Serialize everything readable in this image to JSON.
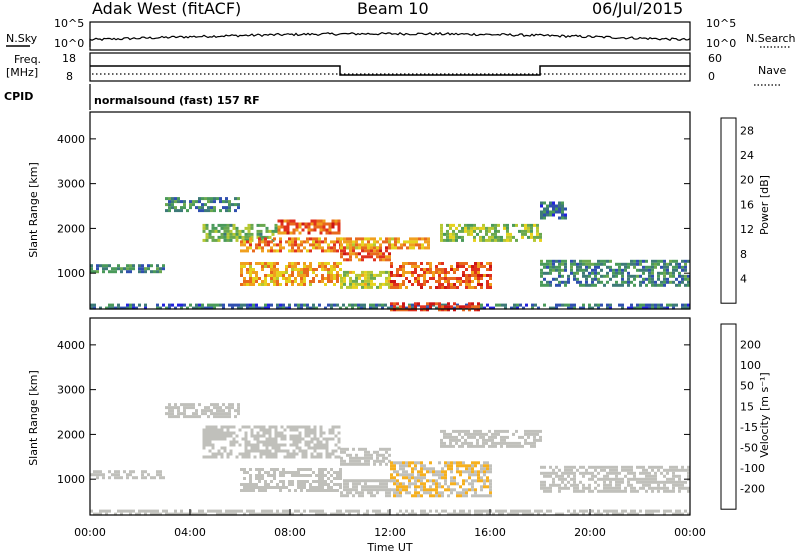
{
  "header": {
    "title": "Adak West (fitACF)",
    "beam": "Beam 10",
    "date": "06/Jul/2015"
  },
  "panels": {
    "nsky": {
      "label": "N.Sky",
      "right_label": "N.Search",
      "left_ticks": [
        "10^5",
        "10^0"
      ],
      "right_ticks": [
        "10^5",
        "10^0"
      ]
    },
    "freq": {
      "label_line1": "Freq.",
      "label_line2": "[MHz]",
      "left_ticks": [
        "18",
        "8"
      ],
      "right_label": "Nave",
      "right_ticks": [
        "60",
        "0"
      ]
    },
    "cpid": {
      "label": "CPID",
      "text": "normalsound (fast) 157 RF"
    }
  },
  "colors": {
    "power_scale": [
      "#2222dd",
      "#2f4faf",
      "#3d7a78",
      "#4a9a5a",
      "#6aa84f",
      "#b5c832",
      "#e6d21e",
      "#f0a01e",
      "#e86a1e",
      "#e0301e",
      "#cc1414"
    ],
    "velocity_scale": [
      "#e21f1f",
      "#f05a1e",
      "#f4901e",
      "#f6b01e",
      "#c0c0bb",
      "#c0c0bb",
      "#7fc84a",
      "#4c9a4c",
      "#2f6f8f",
      "#2b3faa"
    ]
  },
  "chart_data": [
    {
      "type": "heatmap",
      "name": "power",
      "xlabel": "",
      "ylabel": "Slant Range [km]",
      "yticks": [
        "1000",
        "2000",
        "3000",
        "4000"
      ],
      "ylim": [
        200,
        4600
      ],
      "xlim": [
        0,
        24
      ],
      "colorbar": {
        "label": "Power [dB]",
        "ticks": [
          "4",
          "8",
          "12",
          "16",
          "20",
          "24",
          "28"
        ],
        "range": [
          0,
          30
        ]
      },
      "features": [
        {
          "t0": 0.0,
          "t1": 24.0,
          "r0": 200,
          "r1": 320,
          "level": 6
        },
        {
          "t0": 0.0,
          "t1": 3.0,
          "r0": 1050,
          "r1": 1200,
          "level": 8
        },
        {
          "t0": 3.0,
          "t1": 6.0,
          "r0": 2400,
          "r1": 2700,
          "level": 8
        },
        {
          "t0": 4.5,
          "t1": 7.5,
          "r0": 1700,
          "r1": 2100,
          "level": 12
        },
        {
          "t0": 6.0,
          "t1": 10.0,
          "r0": 1500,
          "r1": 1800,
          "level": 22
        },
        {
          "t0": 6.0,
          "t1": 10.0,
          "r0": 750,
          "r1": 1250,
          "level": 20
        },
        {
          "t0": 7.5,
          "t1": 10.0,
          "r0": 1900,
          "r1": 2200,
          "level": 24
        },
        {
          "t0": 10.0,
          "t1": 12.0,
          "r0": 1300,
          "r1": 1600,
          "level": 24
        },
        {
          "t0": 10.0,
          "t1": 13.5,
          "r0": 1550,
          "r1": 1800,
          "level": 20
        },
        {
          "t0": 10.0,
          "t1": 12.0,
          "r0": 700,
          "r1": 1050,
          "level": 16
        },
        {
          "t0": 12.0,
          "t1": 16.0,
          "r0": 700,
          "r1": 1250,
          "level": 24
        },
        {
          "t0": 12.0,
          "t1": 15.5,
          "r0": 200,
          "r1": 350,
          "level": 26
        },
        {
          "t0": 14.0,
          "t1": 18.0,
          "r0": 1750,
          "r1": 2100,
          "level": 14
        },
        {
          "t0": 18.0,
          "t1": 24.0,
          "r0": 700,
          "r1": 1300,
          "level": 8
        },
        {
          "t0": 18.0,
          "t1": 19.0,
          "r0": 2200,
          "r1": 2600,
          "level": 6
        }
      ]
    },
    {
      "type": "heatmap",
      "name": "velocity",
      "xlabel": "Time UT",
      "ylabel": "Slant Range [km]",
      "yticks": [
        "1000",
        "2000",
        "3000",
        "4000"
      ],
      "ylim": [
        200,
        4600
      ],
      "xlim": [
        0,
        24
      ],
      "xticks": [
        "00:00",
        "04:00",
        "08:00",
        "12:00",
        "16:00",
        "20:00",
        "00:00"
      ],
      "colorbar": {
        "label": "Velocity [m s⁻¹]",
        "ticks": [
          "200",
          "100",
          "50",
          "15",
          "-15",
          "-50",
          "-100",
          "-200"
        ],
        "range": [
          -250,
          250
        ]
      },
      "features": [
        {
          "t0": 0.0,
          "t1": 24.0,
          "r0": 200,
          "r1": 320,
          "level": 30
        },
        {
          "t0": 0.0,
          "t1": 3.0,
          "r0": 1050,
          "r1": 1200,
          "level": 0
        },
        {
          "t0": 3.0,
          "t1": 6.0,
          "r0": 2400,
          "r1": 2700,
          "level": 0
        },
        {
          "t0": 4.5,
          "t1": 10.0,
          "r0": 1500,
          "r1": 2200,
          "level": 0
        },
        {
          "t0": 6.0,
          "t1": 10.0,
          "r0": 750,
          "r1": 1250,
          "level": 0
        },
        {
          "t0": 10.0,
          "t1": 12.0,
          "r0": 1300,
          "r1": 1700,
          "level": 0
        },
        {
          "t0": 10.0,
          "t1": 12.0,
          "r0": 650,
          "r1": 1000,
          "level": -40
        },
        {
          "t0": 12.0,
          "t1": 16.0,
          "r0": 650,
          "r1": 1400,
          "level": -50
        },
        {
          "t0": 14.0,
          "t1": 18.0,
          "r0": 1750,
          "r1": 2100,
          "level": 0
        },
        {
          "t0": 18.0,
          "t1": 24.0,
          "r0": 700,
          "r1": 1300,
          "level": 0
        }
      ]
    }
  ]
}
